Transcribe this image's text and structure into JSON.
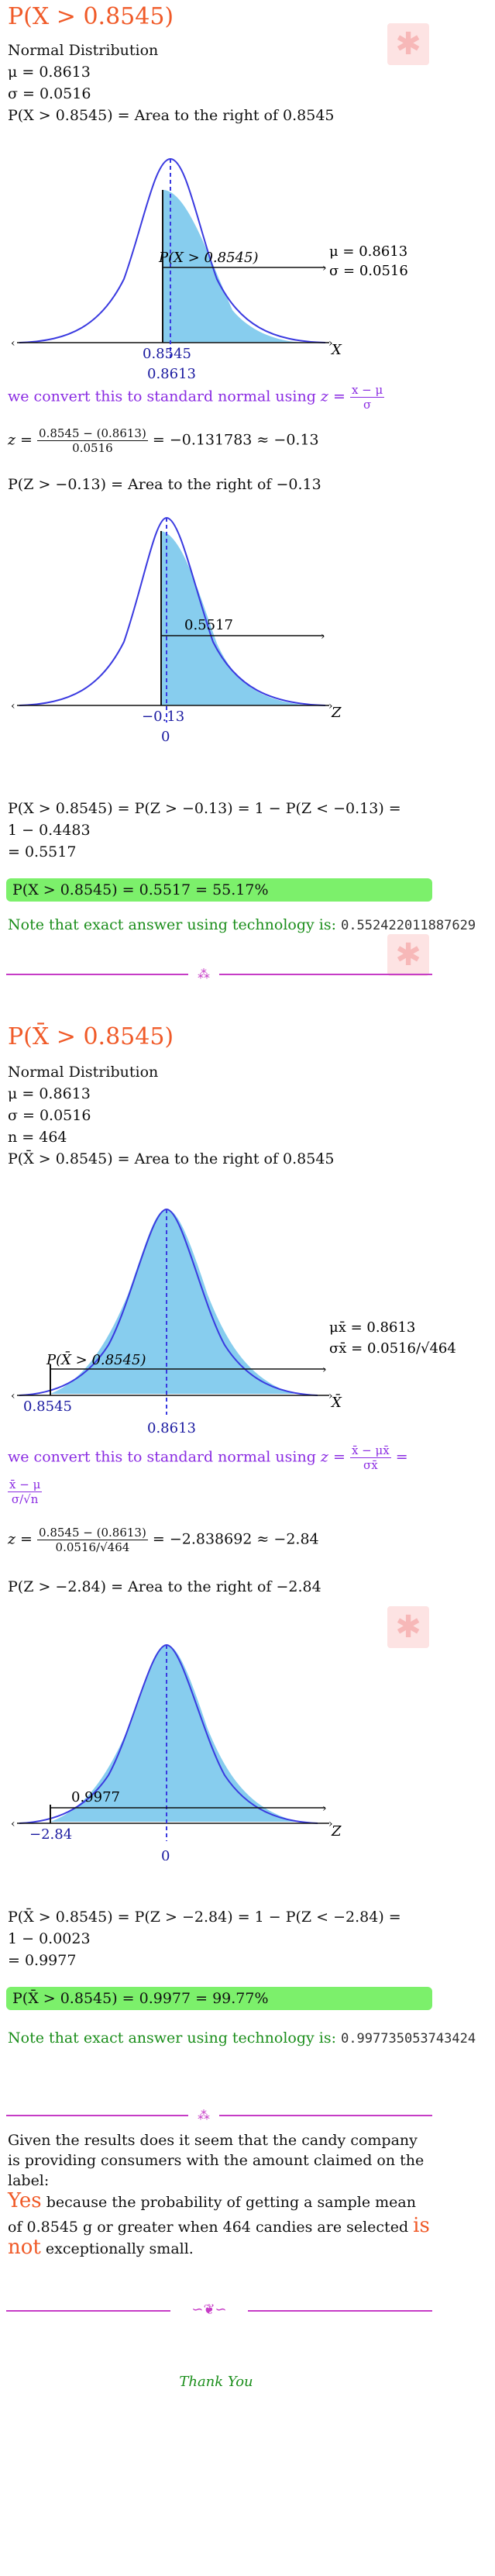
{
  "section1": {
    "title": "P(X > 0.8545)",
    "dist": "Normal Distribution",
    "mu": "μ = 0.8613",
    "sigma": "σ = 0.0516",
    "area_stmt": "P(X > 0.8545) = Area to the right of 0.8545",
    "graph1": {
      "label_prob": "P(X > 0.8545)",
      "mu_lbl": "μ = 0.8613",
      "sigma_lbl": "σ = 0.0516",
      "tick_a": "0.8545",
      "tick_b": "0.8613",
      "axis": "X"
    },
    "convert_text": "we convert this to standard normal using",
    "convert_lhs": "z =",
    "convert_num": "x − μ",
    "convert_den": "σ",
    "z_lhs": "z =",
    "z_num": "0.8545 − (0.8613)",
    "z_den": "0.0516",
    "z_rhs": "= −0.131783 ≈ −0.13",
    "z_area": "P(Z > −0.13) = Area to the right of −0.13",
    "graph2": {
      "label_prob": "0.5517",
      "tick_a": "−0.13",
      "tick_b": "0",
      "axis": "Z"
    },
    "calc1": "P(X > 0.8545) = P(Z > −0.13) = 1 − P(Z < −0.13) =",
    "calc2": "1 − 0.4483",
    "calc3": "= 0.5517",
    "result": "P(X > 0.8545) = 0.5517 = 55.17%",
    "tech_text": "Note that exact answer using technology is:",
    "tech_value": "0.552422011887629"
  },
  "section2": {
    "title": "P(X̄ > 0.8545)",
    "dist": "Normal Distribution",
    "mu": "μ = 0.8613",
    "sigma": "σ = 0.0516",
    "n": "n = 464",
    "area_stmt": "P(X̄ > 0.8545) = Area to the right of 0.8545",
    "graph1": {
      "label_prob": "P(X̄ > 0.8545)",
      "mu_lbl": "μx̄ = 0.8613",
      "sigma_lbl": "σx̄ = 0.0516/√464",
      "tick_a": "0.8545",
      "tick_b": "0.8613",
      "axis": "X̄"
    },
    "convert_text": "we convert this to standard normal using",
    "convert_lhs": "z =",
    "convert_num": "x̄ − μx̄",
    "convert_den": "σx̄",
    "convert_eq": "=",
    "convert_num2": "x̄ − μ",
    "convert_den2": "σ/√n",
    "z_lhs": "z =",
    "z_num": "0.8545 − (0.8613)",
    "z_den": "0.0516/√464",
    "z_rhs": "= −2.838692 ≈ −2.84",
    "z_area": "P(Z > −2.84) = Area to the right of −2.84",
    "graph2": {
      "label_prob": "0.9977",
      "tick_a": "−2.84",
      "tick_b": "0",
      "axis": "Z"
    },
    "calc1": "P(X̄ > 0.8545) = P(Z > −2.84) = 1 − P(Z < −2.84) =",
    "calc2": "1 − 0.0023",
    "calc3": "= 0.9977",
    "result": "P(X̄ > 0.8545) = 0.9977 = 99.77%",
    "tech_text": "Note that exact answer using technology is:",
    "tech_value": "0.997735053743424"
  },
  "section3": {
    "line1": "Given the results does it seem that the candy company",
    "line2": "is providing consumers with the amount claimed on the",
    "line3": "label:",
    "yes": "Yes",
    "because": "because the probability of getting a sample mean",
    "line5a": "of 0.8545 g or greater when 464 candies are selected",
    "is": "is",
    "not": "not",
    "line6": "exceptionally small."
  },
  "divider_mark": "⁂",
  "final_mark": "∽❦∽",
  "thank_you": "Thank You",
  "watermark_glyph": "✱"
}
